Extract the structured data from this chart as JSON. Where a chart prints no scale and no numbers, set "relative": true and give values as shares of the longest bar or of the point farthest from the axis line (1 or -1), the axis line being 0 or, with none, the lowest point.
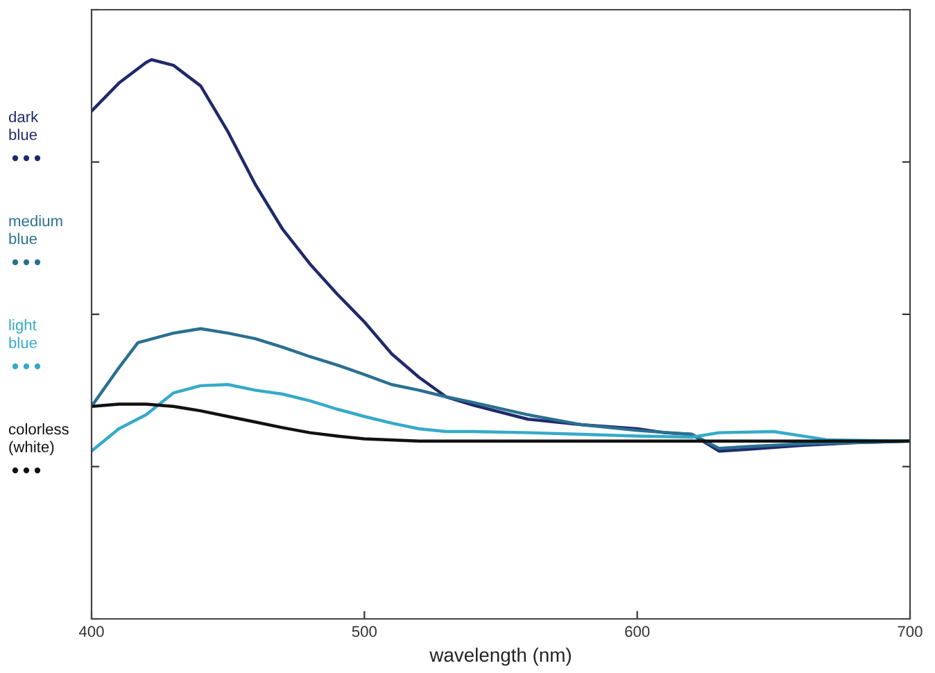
{
  "chart_data": {
    "type": "line",
    "relative": true,
    "xlabel": "wavelength (nm)",
    "xlim": [
      400,
      700
    ],
    "xticks": [
      400,
      500,
      600,
      700
    ],
    "legend": "left",
    "grid": false,
    "line_style": "solid",
    "marker": "none",
    "series": [
      {
        "name": "dark blue",
        "color": "#1f2a6b",
        "x": [
          400,
          410,
          420,
          422,
          430,
          440,
          450,
          460,
          470,
          480,
          490,
          500,
          510,
          520,
          530,
          540,
          560,
          580,
          600,
          610,
          620,
          630,
          640,
          660,
          680,
          700
        ],
        "values": [
          0.908,
          0.958,
          0.995,
          1.0,
          0.99,
          0.953,
          0.871,
          0.777,
          0.697,
          0.635,
          0.581,
          0.531,
          0.474,
          0.432,
          0.397,
          0.382,
          0.357,
          0.347,
          0.34,
          0.333,
          0.33,
          0.3,
          0.303,
          0.31,
          0.315,
          0.318
        ]
      },
      {
        "name": "medium blue",
        "color": "#2a7090",
        "x": [
          400,
          410,
          417,
          430,
          440,
          450,
          460,
          470,
          480,
          490,
          500,
          510,
          520,
          530,
          540,
          560,
          580,
          600,
          620,
          630,
          640,
          660,
          700
        ],
        "values": [
          0.38,
          0.449,
          0.494,
          0.511,
          0.519,
          0.511,
          0.501,
          0.486,
          0.469,
          0.454,
          0.437,
          0.419,
          0.409,
          0.397,
          0.387,
          0.365,
          0.347,
          0.337,
          0.33,
          0.305,
          0.308,
          0.313,
          0.318
        ]
      },
      {
        "name": "light blue",
        "color": "#35aac8",
        "x": [
          400,
          410,
          420,
          430,
          440,
          450,
          460,
          470,
          480,
          490,
          500,
          510,
          520,
          530,
          540,
          560,
          580,
          600,
          620,
          630,
          650,
          670,
          700
        ],
        "values": [
          0.3,
          0.34,
          0.365,
          0.404,
          0.417,
          0.419,
          0.409,
          0.402,
          0.39,
          0.375,
          0.362,
          0.35,
          0.34,
          0.335,
          0.335,
          0.333,
          0.33,
          0.327,
          0.325,
          0.333,
          0.335,
          0.32,
          0.318
        ]
      },
      {
        "name": "colorless (white)",
        "color": "#111111",
        "x": [
          400,
          410,
          420,
          430,
          440,
          450,
          460,
          470,
          480,
          490,
          500,
          520,
          550,
          600,
          650,
          700
        ],
        "values": [
          0.38,
          0.384,
          0.384,
          0.38,
          0.372,
          0.362,
          0.352,
          0.342,
          0.333,
          0.327,
          0.322,
          0.318,
          0.318,
          0.318,
          0.318,
          0.318
        ]
      }
    ]
  }
}
